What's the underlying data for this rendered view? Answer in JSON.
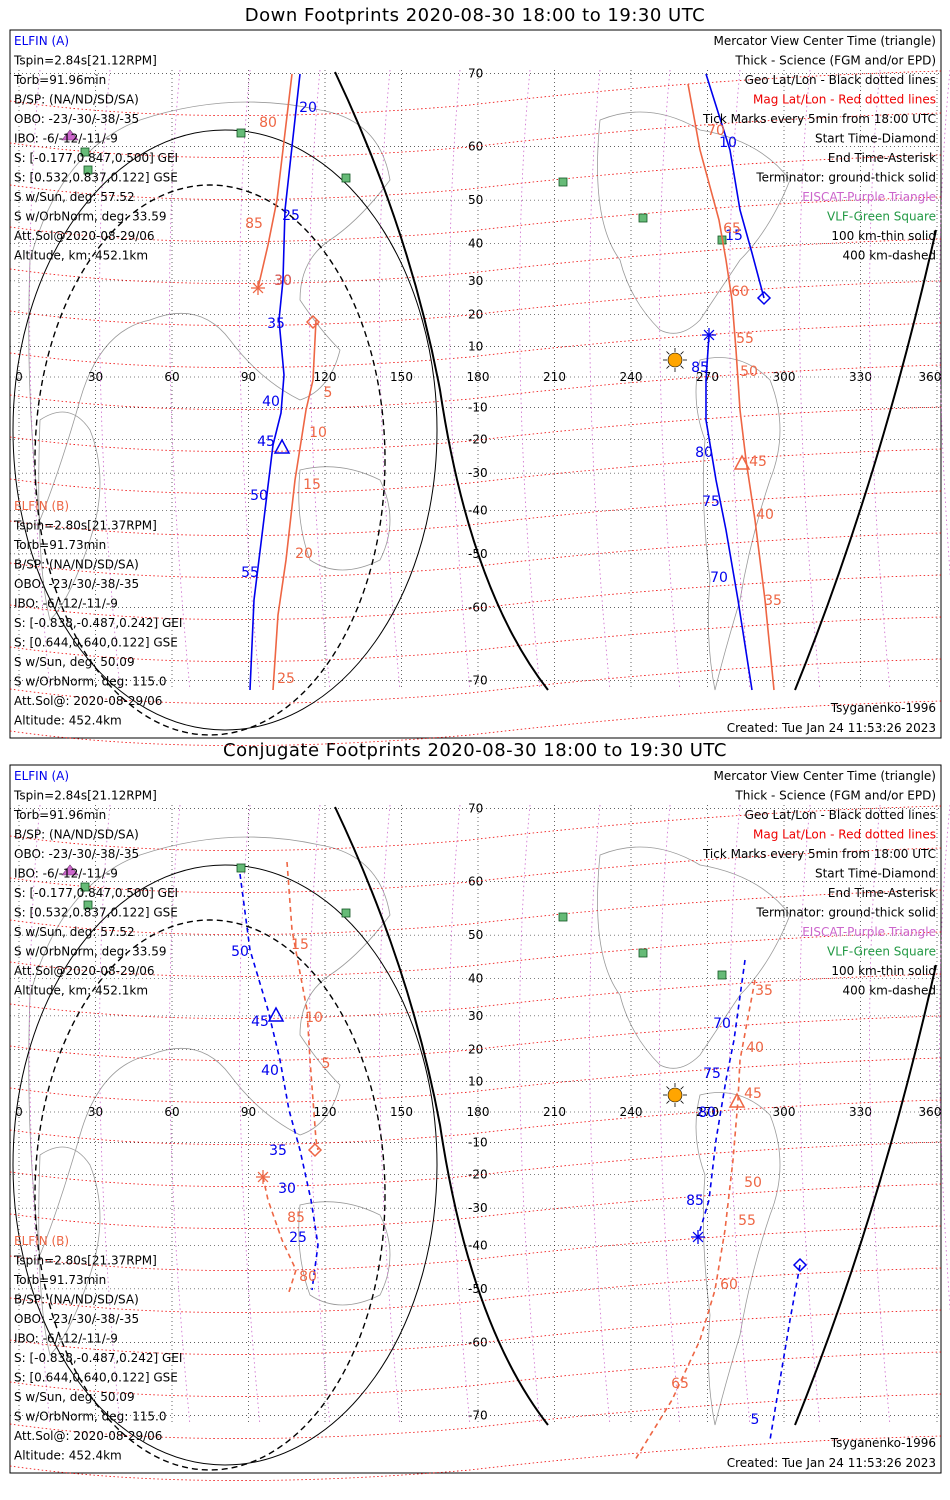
{
  "colors": {
    "a": "#0000ee",
    "b": "#ee6644",
    "mag_grid": "#ee0000",
    "geo_grid": "#000000",
    "eiscat": "#cc66cc",
    "vlf": "#229944",
    "land": "#9a9a9a",
    "sun": "#ffa500"
  },
  "panels": [
    {
      "title": "Down Footprints 2020-08-30 18:00 to 19:30 UTC",
      "a_track": [
        [
          300,
          74
        ],
        [
          285,
          210
        ],
        [
          283,
          280
        ],
        [
          279,
          320
        ],
        [
          284,
          375
        ],
        [
          281,
          413
        ],
        [
          273,
          445
        ],
        [
          262,
          535
        ],
        [
          254,
          600
        ],
        [
          250,
          690
        ]
      ],
      "a_labels": [
        [
          "20",
          308,
          112
        ],
        [
          "25",
          291,
          220
        ],
        [
          "30",
          283,
          285
        ],
        [
          "35",
          276,
          328
        ],
        [
          "40",
          271,
          406
        ],
        [
          "45",
          266,
          446
        ],
        [
          "50",
          259,
          500
        ],
        [
          "55",
          250,
          577
        ]
      ],
      "b_track": [
        [
          292,
          74
        ],
        [
          277,
          200
        ],
        [
          268,
          245
        ],
        [
          258,
          288
        ]
      ],
      "b_labels": [
        [
          "80",
          268,
          127
        ],
        [
          "85",
          254,
          228
        ],
        [
          "30",
          283,
          285
        ]
      ],
      "b2_track": [
        [
          316,
          320
        ],
        [
          313,
          380
        ],
        [
          306,
          410
        ],
        [
          295,
          480
        ],
        [
          286,
          560
        ],
        [
          278,
          615
        ],
        [
          273,
          690
        ]
      ],
      "b2_labels": [
        [
          "5",
          328,
          397
        ],
        [
          "10",
          318,
          437
        ],
        [
          "15",
          312,
          489
        ],
        [
          "20",
          304,
          558
        ],
        [
          "25",
          286,
          683
        ]
      ],
      "a_start": [
        313,
        322
      ],
      "b_start_star": [
        258,
        288
      ],
      "a_tri": [
        282,
        447
      ],
      "a2_track": [
        [
          706,
          74
        ],
        [
          730,
          150
        ],
        [
          740,
          210
        ],
        [
          752,
          253
        ],
        [
          764,
          298
        ]
      ],
      "a2_labels": [
        [
          "10",
          728,
          147
        ],
        [
          "15",
          734,
          240
        ]
      ],
      "a3_track": [
        [
          709,
          335
        ],
        [
          706,
          380
        ],
        [
          706,
          420
        ],
        [
          716,
          480
        ],
        [
          726,
          530
        ],
        [
          738,
          600
        ],
        [
          752,
          690
        ]
      ],
      "a3_labels": [
        [
          "85",
          700,
          372
        ],
        [
          "80",
          704,
          457
        ],
        [
          "75",
          711,
          506
        ],
        [
          "70",
          719,
          582
        ]
      ],
      "b3_track": [
        [
          688,
          84
        ],
        [
          700,
          150
        ],
        [
          719,
          220
        ],
        [
          726,
          260
        ],
        [
          732,
          300
        ],
        [
          736,
          350
        ],
        [
          740,
          410
        ],
        [
          746,
          460
        ],
        [
          755,
          520
        ],
        [
          765,
          600
        ],
        [
          774,
          690
        ]
      ],
      "b3_labels": [
        [
          "70",
          716,
          135
        ],
        [
          "65",
          732,
          233
        ],
        [
          "60",
          740,
          296
        ],
        [
          "55",
          745,
          343
        ],
        [
          "50",
          749,
          376
        ],
        [
          "45",
          758,
          466
        ],
        [
          "40",
          765,
          519
        ],
        [
          "35",
          773,
          605
        ]
      ],
      "a2_diamond": [
        764,
        298
      ],
      "a3_star": [
        709,
        335
      ],
      "b3_tri": [
        742,
        463
      ]
    },
    {
      "title": "Conjugate Footprints 2020-08-30 18:00 to 19:30 UTC",
      "a_track": [
        [
          240,
          874
        ],
        [
          250,
          950
        ],
        [
          268,
          1010
        ],
        [
          280,
          1060
        ],
        [
          289,
          1110
        ],
        [
          300,
          1150
        ],
        [
          311,
          1200
        ],
        [
          318,
          1245
        ],
        [
          312,
          1290
        ]
      ],
      "a_labels": [
        [
          "50",
          240,
          956
        ],
        [
          "45",
          260,
          1026
        ],
        [
          "40",
          270,
          1075
        ],
        [
          "35",
          278,
          1155
        ],
        [
          "30",
          287,
          1193
        ],
        [
          "25",
          298,
          1242
        ]
      ],
      "b_track": [
        [
          287,
          862
        ],
        [
          292,
          930
        ],
        [
          307,
          1010
        ],
        [
          310,
          1060
        ],
        [
          316,
          1140
        ],
        [
          318,
          1150
        ]
      ],
      "b_labels": [
        [
          "15",
          300,
          949
        ],
        [
          "10",
          314,
          1022
        ],
        [
          "5",
          326,
          1068
        ]
      ],
      "b2_track": [
        [
          263,
          1177
        ],
        [
          268,
          1200
        ],
        [
          282,
          1240
        ],
        [
          296,
          1270
        ],
        [
          288,
          1295
        ]
      ],
      "b2_labels": [
        [
          "85",
          296,
          1222
        ],
        [
          "80",
          308,
          1281
        ]
      ],
      "a_start": [
        315,
        1150
      ],
      "b_start_star": [
        263,
        1177
      ],
      "a_tri": [
        276,
        1015
      ],
      "a2_track": [
        [
          745,
          960
        ],
        [
          734,
          1040
        ],
        [
          726,
          1080
        ],
        [
          716,
          1140
        ],
        [
          709,
          1200
        ],
        [
          698,
          1237
        ]
      ],
      "a2_labels": [
        [
          "70",
          722,
          1028
        ],
        [
          "75",
          712,
          1078
        ],
        [
          "80",
          707,
          1117
        ],
        [
          "85",
          695,
          1205
        ]
      ],
      "a3_track": [
        [
          800,
          1265
        ],
        [
          790,
          1320
        ],
        [
          780,
          1380
        ],
        [
          770,
          1440
        ]
      ],
      "a3_labels": [
        [
          "5",
          755,
          1424
        ]
      ],
      "b3_track": [
        [
          755,
          980
        ],
        [
          740,
          1060
        ],
        [
          738,
          1100
        ],
        [
          733,
          1160
        ],
        [
          725,
          1230
        ],
        [
          715,
          1290
        ],
        [
          700,
          1340
        ],
        [
          672,
          1400
        ],
        [
          635,
          1460
        ]
      ],
      "b3_labels": [
        [
          "35",
          764,
          995
        ],
        [
          "40",
          755,
          1052
        ],
        [
          "45",
          753,
          1098
        ],
        [
          "50",
          753,
          1187
        ],
        [
          "55",
          747,
          1225
        ],
        [
          "60",
          729,
          1289
        ],
        [
          "65",
          680,
          1388
        ]
      ],
      "a2_diamond": [
        800,
        1265
      ],
      "a3_star": [
        698,
        1237
      ],
      "b3_tri": [
        737,
        1101
      ]
    }
  ],
  "panel_text": {
    "left_a": [
      "ELFIN (A)",
      "Tspin=2.84s[21.12RPM]",
      "Torb=91.96min",
      "B/SP: (NA/ND/SD/SA)",
      "OBO: -23/-30/-38/-35",
      "IBO: -6/-12/-11/-9",
      "S: [-0.177,0.847,0.500] GEI",
      "S: [0.532,0.837,0.122] GSE",
      "S w/Sun, deg: 57.52",
      "S w/OrbNorm, deg: 33.59",
      "Att.Sol@2020-08-29/06",
      "Altitude, km: 452.1km"
    ],
    "left_b": [
      "ELFIN (B)",
      "Tspin=2.80s[21.37RPM]",
      "Torb=91.73min",
      "B/SP: (NA/ND/SD/SA)",
      "OBO: -23/-30/-38/-35",
      "IBO: -6/-12/-11/-9",
      "S: [-0.838,-0.487,0.242] GEI",
      "S: [0.644,0.640,0.122] GSE",
      "S w/Sun, deg: 50.09",
      "S w/OrbNorm, deg: 115.0",
      "Att.Sol@: 2020-08-29/06",
      "Altitude: 452.4km"
    ],
    "right": [
      "Mercator View Center Time (triangle)",
      "Thick - Science (FGM and/or EPD)",
      "Geo Lat/Lon - Black dotted lines",
      "Mag Lat/Lon - Red dotted lines",
      "Tick Marks every 5min from 18:00 UTC",
      "Start Time-Diamond",
      "End Time-Asterisk",
      "Terminator: ground-thick solid",
      "EISCAT-Purple Triangle",
      "VLF-Green Square",
      "100 km-thin solid",
      "400 km-dashed"
    ],
    "model": "Tsyganenko-1996",
    "created": "Created: Tue Jan 24 11:53:26 2023"
  },
  "axes": {
    "lon_ticks": [
      "0",
      "30",
      "60",
      "90",
      "120",
      "150",
      "180",
      "210",
      "240",
      "270",
      "300",
      "330",
      "360"
    ],
    "lat_ticks": [
      "70",
      "60",
      "50",
      "40",
      "30",
      "20",
      "10",
      "0",
      "-10",
      "-20",
      "-30",
      "-40",
      "-50",
      "-60",
      "-70"
    ]
  }
}
